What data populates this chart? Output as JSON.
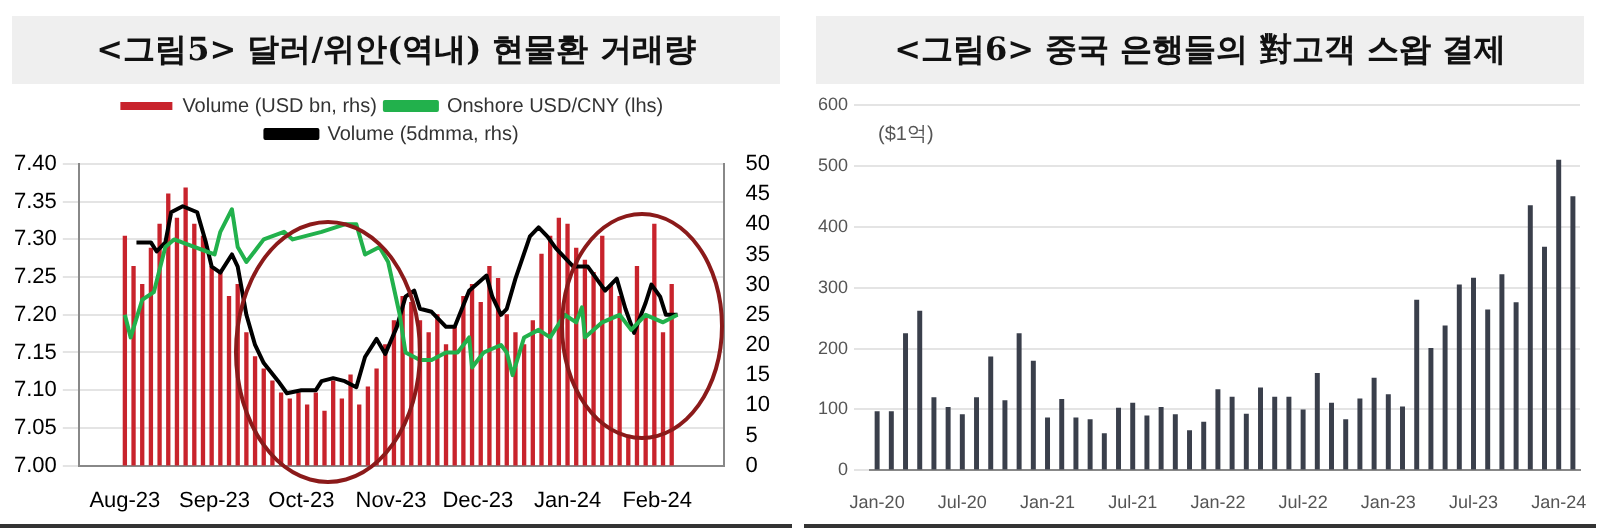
{
  "chart_data": [
    {
      "type": "bar",
      "title": "<그림5> 달러/위안(역내) 현물환 거래량",
      "xlim": [
        "2023-08-01",
        "2024-02-08"
      ],
      "xticks": [
        {
          "value": "2023-08-01",
          "label": "Aug-23"
        },
        {
          "value": "2023-09-01",
          "label": "Sep-23"
        },
        {
          "value": "2023-10-01",
          "label": "Oct-23"
        },
        {
          "value": "2023-11-01",
          "label": "Nov-23"
        },
        {
          "value": "2023-12-01",
          "label": "Dec-23"
        },
        {
          "value": "2024-01-01",
          "label": "Jan-24"
        },
        {
          "value": "2024-02-01",
          "label": "Feb-24"
        }
      ],
      "ylim": [
        7,
        7.4
      ],
      "yticks": [
        {
          "value": 7,
          "label": "7.00"
        },
        {
          "value": 7.05,
          "label": "7.05"
        },
        {
          "value": 7.1,
          "label": "7.10"
        },
        {
          "value": 7.15,
          "label": "7.15"
        },
        {
          "value": 7.2,
          "label": "7.20"
        },
        {
          "value": 7.25,
          "label": "7.25"
        },
        {
          "value": 7.3,
          "label": "7.30"
        },
        {
          "value": 7.35,
          "label": "7.35"
        },
        {
          "value": 7.4,
          "label": "7.40"
        }
      ],
      "y2lim": [
        0,
        50
      ],
      "y2ticks": [
        0,
        5,
        10,
        15,
        20,
        25,
        30,
        35,
        40,
        45,
        50
      ],
      "grid": "y",
      "legend": "top",
      "series": [
        {
          "name": "Volume (USD bn, rhs)",
          "type": "bar",
          "axis": "y2",
          "color": "#c8232c",
          "x": [
            "2023-08-01",
            "2023-08-04",
            "2023-08-07",
            "2023-08-10",
            "2023-08-13",
            "2023-08-16",
            "2023-08-19",
            "2023-08-22",
            "2023-08-25",
            "2023-08-28",
            "2023-08-31",
            "2023-09-03",
            "2023-09-06",
            "2023-09-09",
            "2023-09-12",
            "2023-09-15",
            "2023-09-18",
            "2023-09-21",
            "2023-09-24",
            "2023-09-27",
            "2023-09-30",
            "2023-10-03",
            "2023-10-06",
            "2023-10-09",
            "2023-10-12",
            "2023-10-15",
            "2023-10-18",
            "2023-10-21",
            "2023-10-24",
            "2023-10-27",
            "2023-10-30",
            "2023-11-02",
            "2023-11-05",
            "2023-11-08",
            "2023-11-11",
            "2023-11-14",
            "2023-11-17",
            "2023-11-20",
            "2023-11-23",
            "2023-11-26",
            "2023-11-29",
            "2023-12-02",
            "2023-12-05",
            "2023-12-08",
            "2023-12-11",
            "2023-12-14",
            "2023-12-17",
            "2023-12-20",
            "2023-12-23",
            "2023-12-26",
            "2023-12-29",
            "2024-01-01",
            "2024-01-04",
            "2024-01-07",
            "2024-01-10",
            "2024-01-13",
            "2024-01-16",
            "2024-01-19",
            "2024-01-22",
            "2024-01-25",
            "2024-01-28",
            "2024-01-31",
            "2024-02-03",
            "2024-02-06"
          ],
          "values": [
            38,
            33,
            30,
            36,
            40,
            45,
            41,
            46,
            40,
            38,
            33,
            32,
            28,
            30,
            22,
            18,
            16,
            14,
            12,
            11,
            12,
            10,
            12,
            9,
            14,
            11,
            15,
            10,
            13,
            16,
            20,
            24,
            28,
            27,
            24,
            22,
            25,
            20,
            23,
            28,
            30,
            27,
            33,
            31,
            25,
            22,
            20,
            24,
            35,
            38,
            41,
            40,
            36,
            34,
            32,
            38,
            30,
            28,
            5,
            33,
            25,
            40,
            22,
            30
          ]
        },
        {
          "name": "Onshore USD/CNY (lhs)",
          "type": "line",
          "color": "#22b14c",
          "x": [
            "2023-08-01",
            "2023-08-03",
            "2023-08-07",
            "2023-08-11",
            "2023-08-15",
            "2023-08-18",
            "2023-09-01",
            "2023-09-03",
            "2023-09-07",
            "2023-09-09",
            "2023-09-12",
            "2023-09-18",
            "2023-09-25",
            "2023-09-28",
            "2023-10-08",
            "2023-10-16",
            "2023-10-20",
            "2023-10-23",
            "2023-10-28",
            "2023-10-31",
            "2023-11-04",
            "2023-11-06",
            "2023-11-11",
            "2023-11-15",
            "2023-11-20",
            "2023-11-24",
            "2023-11-28",
            "2023-11-29",
            "2023-12-03",
            "2023-12-09",
            "2023-12-11",
            "2023-12-13",
            "2023-12-17",
            "2023-12-22",
            "2023-12-26",
            "2023-12-31",
            "2024-01-04",
            "2024-01-06",
            "2024-01-07",
            "2024-01-13",
            "2024-01-19",
            "2024-01-23",
            "2024-01-28",
            "2024-02-03",
            "2024-02-08"
          ],
          "values": [
            7.2,
            7.17,
            7.22,
            7.23,
            7.29,
            7.3,
            7.28,
            7.31,
            7.34,
            7.29,
            7.27,
            7.3,
            7.31,
            7.3,
            7.31,
            7.32,
            7.32,
            7.28,
            7.29,
            7.27,
            7.2,
            7.15,
            7.14,
            7.14,
            7.15,
            7.15,
            7.17,
            7.13,
            7.15,
            7.16,
            7.15,
            7.12,
            7.17,
            7.18,
            7.17,
            7.2,
            7.19,
            7.21,
            7.17,
            7.19,
            7.2,
            7.18,
            7.2,
            7.19,
            7.2
          ]
        },
        {
          "name": "Volume (5dmma, rhs)",
          "type": "line",
          "axis": "y2",
          "color": "#000000",
          "x": [
            "2023-08-05",
            "2023-08-10",
            "2023-08-12",
            "2023-08-15",
            "2023-08-17",
            "2023-08-21",
            "2023-08-26",
            "2023-08-29",
            "2023-08-31",
            "2023-09-03",
            "2023-09-07",
            "2023-09-09",
            "2023-09-12",
            "2023-09-15",
            "2023-09-18",
            "2023-09-23",
            "2023-09-26",
            "2023-10-01",
            "2023-10-06",
            "2023-10-08",
            "2023-10-12",
            "2023-10-16",
            "2023-10-20",
            "2023-10-23",
            "2023-10-27",
            "2023-10-30",
            "2023-11-03",
            "2023-11-06",
            "2023-11-09",
            "2023-11-11",
            "2023-11-15",
            "2023-11-20",
            "2023-11-23",
            "2023-11-28",
            "2023-12-04",
            "2023-12-06",
            "2023-12-09",
            "2023-12-11",
            "2023-12-14",
            "2023-12-19",
            "2023-12-22",
            "2023-12-25",
            "2023-12-28",
            "2024-01-03",
            "2024-01-08",
            "2024-01-14",
            "2024-01-18",
            "2024-01-21",
            "2024-01-24",
            "2024-01-28",
            "2024-01-30",
            "2024-02-02",
            "2024-02-04",
            "2024-02-08"
          ],
          "values": [
            37,
            37,
            35.5,
            37,
            42,
            43,
            42,
            37,
            33,
            32,
            35,
            33,
            25,
            20,
            17,
            14,
            12,
            12.5,
            12.5,
            14,
            14.5,
            14,
            13,
            18,
            21,
            18.5,
            23,
            28,
            29,
            26,
            25.5,
            23,
            23,
            29,
            31.5,
            28,
            25,
            26,
            31,
            38,
            39.5,
            38,
            36,
            33,
            33,
            29,
            31,
            26,
            22,
            27,
            30,
            28,
            25,
            25
          ]
        }
      ]
    },
    {
      "type": "bar",
      "title": "<그림6> 중국 은행들의 對고객 스왑 결제",
      "ylabel": "($1억)",
      "categories": [
        "Jan-20",
        null,
        null,
        null,
        null,
        null,
        "Jul-20",
        null,
        null,
        null,
        null,
        null,
        "Jan-21",
        null,
        null,
        null,
        null,
        null,
        "Jul-21",
        null,
        null,
        null,
        null,
        null,
        "Jan-22",
        null,
        null,
        null,
        null,
        null,
        "Jul-22",
        null,
        null,
        null,
        null,
        null,
        "Jan-23",
        null,
        null,
        null,
        null,
        null,
        "Jul-23",
        null,
        null,
        null,
        null,
        null,
        "Jan-24",
        null
      ],
      "values": [
        97,
        97,
        225,
        262,
        120,
        104,
        92,
        120,
        187,
        115,
        225,
        180,
        87,
        117,
        87,
        84,
        61,
        103,
        111,
        90,
        104,
        92,
        66,
        80,
        133,
        121,
        93,
        136,
        121,
        121,
        100,
        160,
        111,
        84,
        118,
        152,
        125,
        105,
        280,
        201,
        238,
        305,
        316,
        264,
        322,
        276,
        435,
        367,
        510,
        450
      ],
      "color": "#3a3f4b",
      "ylim": [
        0,
        600
      ],
      "yticks": [
        0,
        100,
        200,
        300,
        400,
        500,
        600
      ],
      "grid": "y"
    }
  ]
}
